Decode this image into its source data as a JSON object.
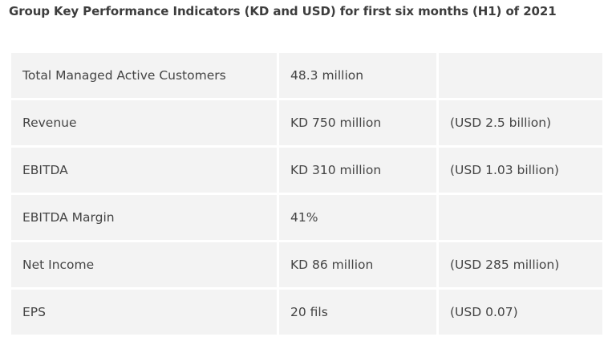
{
  "title": "Group Key Performance Indicators (KD and USD) for first six months (H1) of 2021",
  "rows": [
    {
      "metric": "Total Managed Active Customers",
      "kd": "48.3 million",
      "usd": ""
    },
    {
      "metric": "Revenue",
      "kd": "KD 750 million",
      "usd": "(USD 2.5 billion)"
    },
    {
      "metric": "EBITDA",
      "kd": "KD 310 million",
      "usd": "(USD 1.03 billion)"
    },
    {
      "metric": "EBITDA Margin",
      "kd": "41%",
      "usd": ""
    },
    {
      "metric": "Net Income",
      "kd": "KD 86 million",
      "usd": "(USD 285 million)"
    },
    {
      "metric": "EPS",
      "kd": "20 fils",
      "usd": "(USD 0.07)"
    }
  ]
}
